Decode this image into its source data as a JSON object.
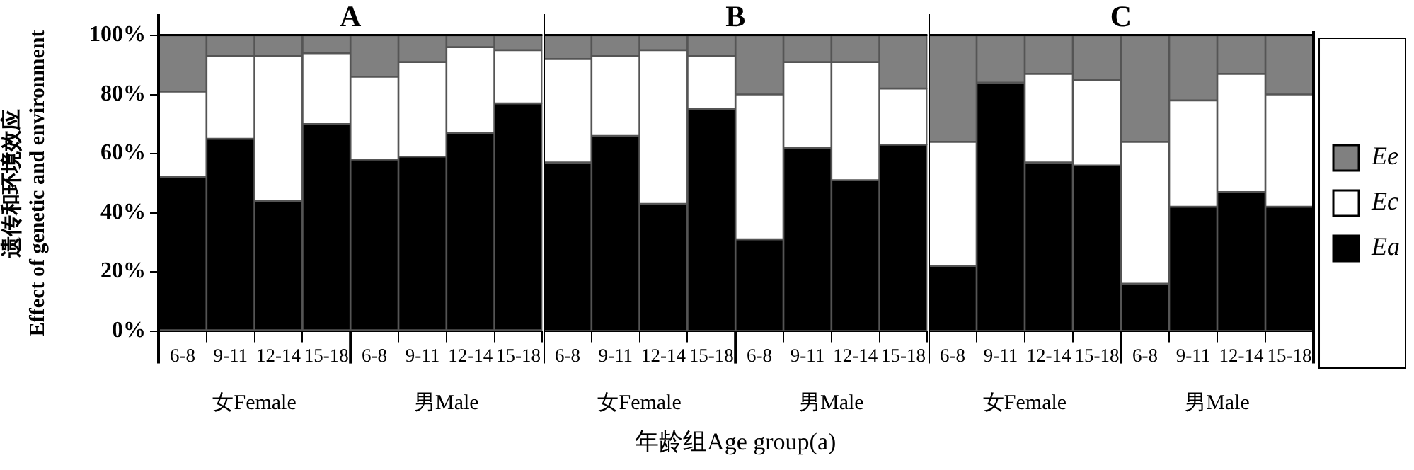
{
  "chart_data": [
    {
      "type": "bar",
      "stacked": true,
      "title": "A",
      "ylabel": "遗传和环境效应\nEffect of genetic and environment",
      "categories": [
        "6-8",
        "9-11",
        "12-14",
        "15-18",
        "6-8",
        "9-11",
        "12-14",
        "15-18"
      ],
      "annotations": [
        "女Female",
        "男Male"
      ],
      "ylim": [
        0,
        100
      ],
      "yticks": [
        {
          "value": 0,
          "label": "0%"
        },
        {
          "value": 20,
          "label": "20%"
        },
        {
          "value": 40,
          "label": "40%"
        },
        {
          "value": 60,
          "label": "60%"
        },
        {
          "value": 80,
          "label": "80%"
        },
        {
          "value": 100,
          "label": "100%"
        }
      ],
      "grid": false,
      "legend": false,
      "series": [
        {
          "color": "#000000",
          "values": [
            52,
            65,
            44,
            70,
            58,
            59,
            67,
            77
          ]
        },
        {
          "color": "#ffffff",
          "values": [
            29,
            28,
            49,
            24,
            28,
            32,
            29,
            18
          ]
        },
        {
          "color": "#808080",
          "values": [
            19,
            7,
            7,
            6,
            14,
            9,
            4,
            5
          ]
        }
      ]
    },
    {
      "type": "bar",
      "stacked": true,
      "title": "B",
      "xlabel": "年龄组Age group(a)",
      "categories": [
        "6-8",
        "9-11",
        "12-14",
        "15-18",
        "6-8",
        "9-11",
        "12-14",
        "15-18"
      ],
      "annotations": [
        "女Female",
        "男Male"
      ],
      "ylim": [
        0,
        100
      ],
      "tick_labels": "x",
      "grid": false,
      "legend": false,
      "series": [
        {
          "color": "#000000",
          "values": [
            57,
            66,
            43,
            75,
            31,
            62,
            51,
            63
          ]
        },
        {
          "color": "#ffffff",
          "values": [
            35,
            27,
            52,
            18,
            49,
            29,
            40,
            19
          ]
        },
        {
          "color": "#808080",
          "values": [
            8,
            7,
            5,
            7,
            20,
            9,
            9,
            18
          ]
        }
      ]
    },
    {
      "type": "bar",
      "stacked": true,
      "title": "C",
      "categories": [
        "6-8",
        "9-11",
        "12-14",
        "15-18",
        "6-8",
        "9-11",
        "12-14",
        "15-18"
      ],
      "annotations": [
        "女Female",
        "男Male"
      ],
      "ylim": [
        0,
        100
      ],
      "tick_labels": "x",
      "grid": false,
      "legend": "right",
      "series": [
        {
          "name": "Ea",
          "color": "#000000",
          "values": [
            22,
            84,
            57,
            56,
            16,
            42,
            47,
            42
          ]
        },
        {
          "name": "Ec",
          "color": "#ffffff",
          "values": [
            42,
            0,
            30,
            29,
            48,
            36,
            40,
            38
          ]
        },
        {
          "name": "Ee",
          "color": "#808080",
          "values": [
            36,
            16,
            13,
            15,
            36,
            22,
            13,
            20
          ]
        }
      ]
    }
  ]
}
